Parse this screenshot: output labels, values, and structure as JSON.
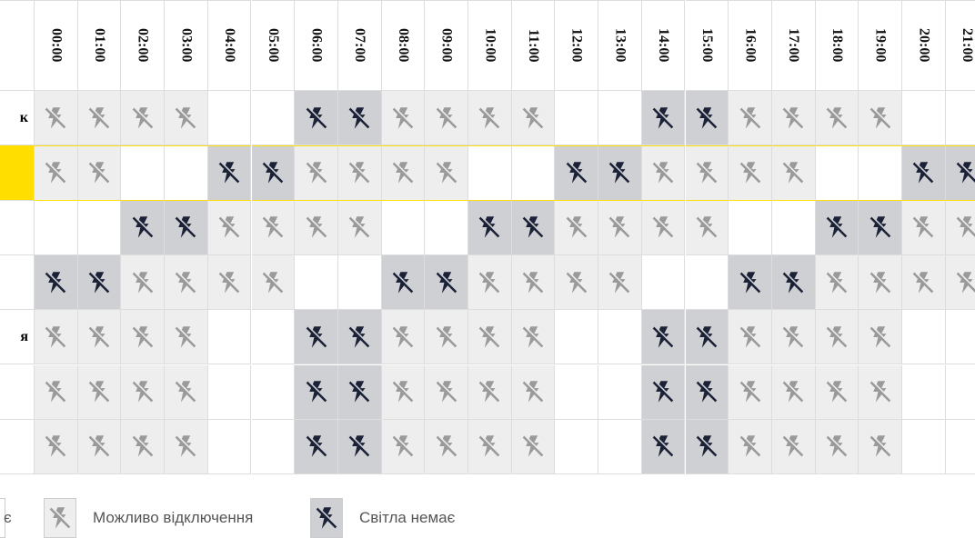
{
  "table": {
    "hours": [
      "00:00",
      "01:00",
      "02:00",
      "03:00",
      "04:00",
      "05:00",
      "06:00",
      "07:00",
      "08:00",
      "09:00",
      "10:00",
      "11:00",
      "12:00",
      "13:00",
      "14:00",
      "15:00",
      "16:00",
      "17:00",
      "18:00",
      "19:00",
      "20:00",
      "21:00"
    ],
    "rows": [
      {
        "label": "к",
        "highlight": false,
        "cells": [
          "maybe",
          "maybe",
          "maybe",
          "maybe",
          "yes",
          "yes",
          "no",
          "no",
          "maybe",
          "maybe",
          "maybe",
          "maybe",
          "yes",
          "yes",
          "no",
          "no",
          "maybe",
          "maybe",
          "maybe",
          "maybe",
          "yes",
          "yes"
        ]
      },
      {
        "label": "",
        "highlight": true,
        "cells": [
          "maybe",
          "maybe",
          "yes",
          "yes",
          "no",
          "no",
          "maybe",
          "maybe",
          "maybe",
          "maybe",
          "yes",
          "yes",
          "no",
          "no",
          "maybe",
          "maybe",
          "maybe",
          "maybe",
          "yes",
          "yes",
          "no",
          "no"
        ]
      },
      {
        "label": "",
        "highlight": false,
        "cells": [
          "yes",
          "yes",
          "no",
          "no",
          "maybe",
          "maybe",
          "maybe",
          "maybe",
          "yes",
          "yes",
          "no",
          "no",
          "maybe",
          "maybe",
          "maybe",
          "maybe",
          "yes",
          "yes",
          "no",
          "no",
          "maybe",
          "maybe"
        ]
      },
      {
        "label": "",
        "highlight": false,
        "cells": [
          "no",
          "no",
          "maybe",
          "maybe",
          "maybe",
          "maybe",
          "yes",
          "yes",
          "no",
          "no",
          "maybe",
          "maybe",
          "maybe",
          "maybe",
          "yes",
          "yes",
          "no",
          "no",
          "maybe",
          "maybe",
          "maybe",
          "maybe"
        ]
      },
      {
        "label": "я",
        "highlight": false,
        "cells": [
          "maybe",
          "maybe",
          "maybe",
          "maybe",
          "yes",
          "yes",
          "no",
          "no",
          "maybe",
          "maybe",
          "maybe",
          "maybe",
          "yes",
          "yes",
          "no",
          "no",
          "maybe",
          "maybe",
          "maybe",
          "maybe",
          "yes",
          "yes"
        ]
      },
      {
        "label": "",
        "highlight": false,
        "cells": [
          "maybe",
          "maybe",
          "maybe",
          "maybe",
          "yes",
          "yes",
          "no",
          "no",
          "maybe",
          "maybe",
          "maybe",
          "maybe",
          "yes",
          "yes",
          "no",
          "no",
          "maybe",
          "maybe",
          "maybe",
          "maybe",
          "yes",
          "yes"
        ]
      },
      {
        "label": "",
        "highlight": false,
        "cells": [
          "maybe",
          "maybe",
          "maybe",
          "maybe",
          "yes",
          "yes",
          "no",
          "no",
          "maybe",
          "maybe",
          "maybe",
          "maybe",
          "yes",
          "yes",
          "no",
          "no",
          "maybe",
          "maybe",
          "maybe",
          "maybe",
          "yes",
          "yes"
        ]
      }
    ]
  },
  "legend": [
    {
      "state": "yes",
      "label": "є"
    },
    {
      "state": "maybe",
      "label": "Можливо відключення"
    },
    {
      "state": "no",
      "label": "Світла немає"
    }
  ]
}
